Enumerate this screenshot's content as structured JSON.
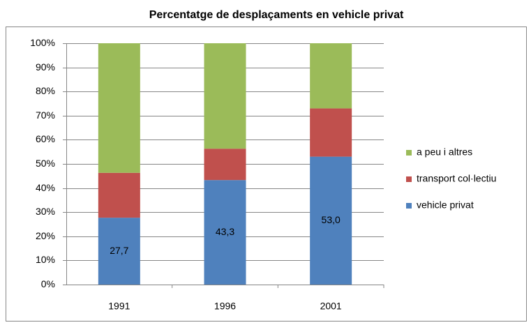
{
  "chart_data": {
    "type": "stacked_bar",
    "title": "Percentatge de desplaçaments en vehicle privat",
    "categories": [
      "1991",
      "1996",
      "2001"
    ],
    "series": [
      {
        "name": "vehicle privat",
        "color": "#4f81bd",
        "values": [
          27.7,
          43.3,
          53.0
        ],
        "value_labels": [
          "27,7",
          "43,3",
          "53,0"
        ]
      },
      {
        "name": "transport col·lectiu",
        "color": "#c0504d",
        "values": [
          18.6,
          13.0,
          20.0
        ]
      },
      {
        "name": "a peu i altres",
        "color": "#9bbb59",
        "values": [
          53.7,
          43.7,
          27.0
        ]
      }
    ],
    "ylim": [
      0,
      100
    ],
    "yticks": [
      {
        "value": 0,
        "label": "0%"
      },
      {
        "value": 10,
        "label": "10%"
      },
      {
        "value": 20,
        "label": "20%"
      },
      {
        "value": 30,
        "label": "30%"
      },
      {
        "value": 40,
        "label": "40%"
      },
      {
        "value": 50,
        "label": "50%"
      },
      {
        "value": 60,
        "label": "60%"
      },
      {
        "value": 70,
        "label": "70%"
      },
      {
        "value": 80,
        "label": "80%"
      },
      {
        "value": 90,
        "label": "90%"
      },
      {
        "value": 100,
        "label": "100%"
      }
    ],
    "grid": true,
    "legend": "right"
  }
}
